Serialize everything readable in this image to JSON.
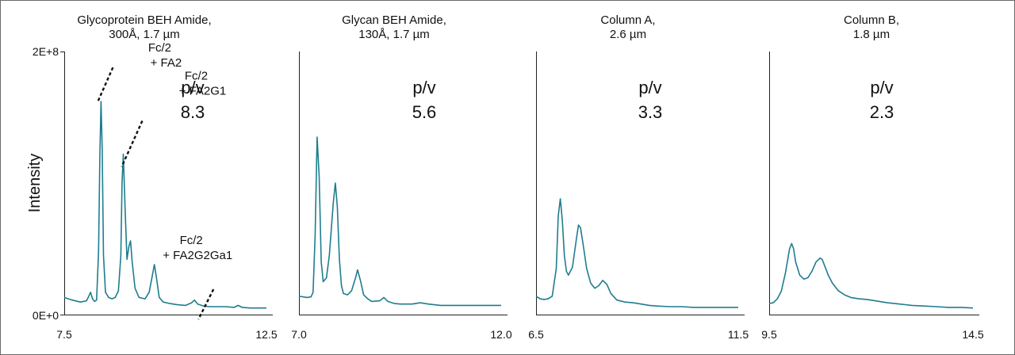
{
  "chart_data": {
    "type": "line",
    "ylabel": "Intensity",
    "ytick_labels": [
      "0E+0",
      "2E+8"
    ],
    "ylim": [
      0,
      200000000
    ],
    "line_color": "#1f7d8e",
    "panels": [
      {
        "title_lines": [
          "Glycoprotein BEH Amide,",
          "300Å, 1.7 µm"
        ],
        "xlim": [
          7.5,
          12.5
        ],
        "xtick_labels": [
          "7.5",
          "12.5"
        ],
        "pv_label": "p/v",
        "pv_value": "8.3",
        "annotations": [
          {
            "lines": [
              "Fc/2",
              "+ FA2"
            ],
            "x": 8.41,
            "y": 162000000
          },
          {
            "lines": [
              "Fc/2",
              "+ FA2G1"
            ],
            "x": 8.96,
            "y": 122000000
          },
          {
            "lines": [
              "Fc/2",
              "+ FA2G2Ga1"
            ],
            "x": 10.7,
            "y": 9000000
          }
        ],
        "series": {
          "x": [
            7.5,
            7.7,
            7.9,
            8.05,
            8.1,
            8.15,
            8.2,
            8.25,
            8.3,
            8.35,
            8.38,
            8.41,
            8.44,
            8.47,
            8.52,
            8.6,
            8.68,
            8.76,
            8.84,
            8.9,
            8.93,
            8.96,
            9.0,
            9.05,
            9.1,
            9.14,
            9.18,
            9.25,
            9.35,
            9.5,
            9.6,
            9.68,
            9.73,
            9.78,
            9.85,
            9.95,
            10.1,
            10.3,
            10.5,
            10.65,
            10.72,
            10.8,
            10.95,
            11.1,
            11.3,
            11.5,
            11.7,
            11.8,
            11.9,
            12.1,
            12.3,
            12.5
          ],
          "y": [
            13000000,
            11000000,
            9500000,
            10500000,
            13500000,
            17000000,
            12000000,
            10000000,
            11000000,
            48000000,
            120000000,
            162000000,
            125000000,
            45000000,
            17000000,
            13000000,
            12000000,
            13000000,
            18000000,
            45000000,
            100000000,
            122000000,
            85000000,
            42000000,
            52000000,
            56000000,
            40000000,
            20000000,
            13000000,
            12000000,
            17000000,
            30000000,
            38000000,
            28000000,
            13000000,
            9500000,
            8500000,
            7500000,
            7000000,
            9000000,
            11000000,
            8000000,
            6500000,
            6000000,
            6000000,
            6000000,
            5500000,
            7000000,
            5500000,
            5000000,
            5000000,
            5000000
          ]
        }
      },
      {
        "title_lines": [
          "Glycan BEH Amide,",
          "130Å, 1.7 µm"
        ],
        "xlim": [
          7.0,
          12.0
        ],
        "xtick_labels": [
          "7.0",
          "12.0"
        ],
        "pv_label": "p/v",
        "pv_value": "5.6",
        "annotations": [],
        "series": {
          "x": [
            7.0,
            7.2,
            7.3,
            7.35,
            7.4,
            7.45,
            7.5,
            7.55,
            7.6,
            7.68,
            7.75,
            7.85,
            7.9,
            7.95,
            8.0,
            8.05,
            8.1,
            8.2,
            8.3,
            8.4,
            8.45,
            8.52,
            8.6,
            8.7,
            8.8,
            9.0,
            9.1,
            9.2,
            9.35,
            9.5,
            9.8,
            10.0,
            10.2,
            10.35,
            10.5,
            10.7,
            11.0,
            11.5,
            12.0
          ],
          "y": [
            14000000,
            13000000,
            13500000,
            17000000,
            60000000,
            135000000,
            105000000,
            40000000,
            25000000,
            28000000,
            45000000,
            85000000,
            100000000,
            82000000,
            42000000,
            22000000,
            16000000,
            15000000,
            18000000,
            28000000,
            34000000,
            26000000,
            15000000,
            12000000,
            10000000,
            10500000,
            13000000,
            10000000,
            8500000,
            8000000,
            8000000,
            9000000,
            8000000,
            7500000,
            7000000,
            7000000,
            7000000,
            7000000,
            7000000
          ]
        }
      },
      {
        "title_lines": [
          "Column A,",
          "2.6 µm"
        ],
        "xlim": [
          6.5,
          11.5
        ],
        "xtick_labels": [
          "6.5",
          "11.5"
        ],
        "pv_label": "p/v",
        "pv_value": "3.3",
        "annotations": [],
        "series": {
          "x": [
            6.5,
            6.6,
            6.7,
            6.8,
            6.9,
            7.0,
            7.05,
            7.1,
            7.15,
            7.2,
            7.25,
            7.3,
            7.4,
            7.5,
            7.55,
            7.6,
            7.68,
            7.75,
            7.85,
            7.95,
            8.05,
            8.15,
            8.25,
            8.35,
            8.5,
            8.7,
            8.9,
            9.1,
            9.3,
            9.5,
            9.8,
            10.1,
            10.4,
            10.7,
            11.0,
            11.5
          ],
          "y": [
            14000000,
            12000000,
            11500000,
            12000000,
            14000000,
            35000000,
            75000000,
            88000000,
            72000000,
            45000000,
            33000000,
            30000000,
            36000000,
            58000000,
            68000000,
            66000000,
            50000000,
            35000000,
            24000000,
            20000000,
            22000000,
            26000000,
            23000000,
            16000000,
            11000000,
            9500000,
            9000000,
            8000000,
            7000000,
            6500000,
            6000000,
            6000000,
            5500000,
            5500000,
            5500000,
            5500000
          ]
        }
      },
      {
        "title_lines": [
          "Column B,",
          "1.8 µm"
        ],
        "xlim": [
          9.5,
          14.5
        ],
        "xtick_labels": [
          "9.5",
          "14.5"
        ],
        "pv_label": "p/v",
        "pv_value": "2.3",
        "annotations": [],
        "series": {
          "x": [
            9.5,
            9.6,
            9.7,
            9.8,
            9.9,
            10.0,
            10.05,
            10.1,
            10.15,
            10.25,
            10.35,
            10.45,
            10.55,
            10.65,
            10.75,
            10.8,
            10.85,
            10.95,
            11.05,
            11.2,
            11.35,
            11.5,
            11.7,
            11.9,
            12.1,
            12.4,
            12.7,
            13.0,
            13.3,
            13.6,
            13.9,
            14.2,
            14.5
          ],
          "y": [
            8500000,
            9000000,
            12000000,
            18000000,
            32000000,
            50000000,
            54000000,
            50000000,
            40000000,
            30000000,
            27000000,
            28000000,
            33000000,
            40000000,
            43000000,
            42000000,
            38000000,
            30000000,
            24000000,
            18000000,
            15000000,
            13000000,
            12000000,
            11500000,
            10500000,
            9000000,
            8000000,
            7000000,
            6500000,
            6000000,
            5500000,
            5500000,
            5000000
          ]
        }
      }
    ]
  }
}
